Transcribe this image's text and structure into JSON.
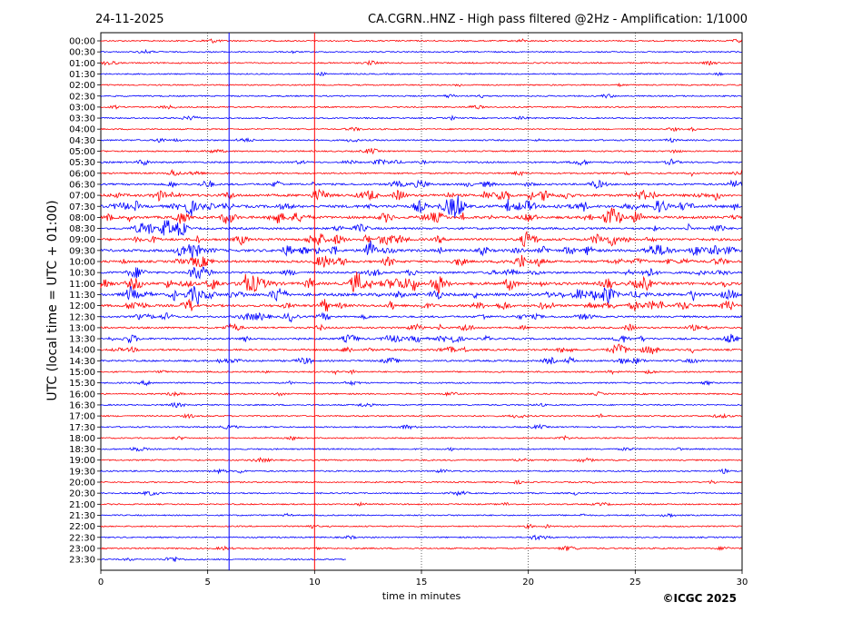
{
  "header": {
    "date": "24-11-2025",
    "title": "CA.CGRN..HNZ - High pass filtered @2Hz - Amplification: 1/1000"
  },
  "footer": {
    "copyright": "©ICGC 2025"
  },
  "colors": {
    "red": "#ff0000",
    "blue": "#0000ff",
    "grid": "#000000"
  },
  "chart_data": {
    "type": "line",
    "title": "CA.CGRN..HNZ - High pass filtered @2Hz - Amplification: 1/1000",
    "xlabel": "time in minutes",
    "ylabel": "UTC (local time = UTC + 01:00)",
    "xlim": [
      0,
      30
    ],
    "xticks": [
      0,
      5,
      10,
      15,
      20,
      25,
      30
    ],
    "grid": "vertical dotted at 5, 15, 20, 25 min",
    "markers": [
      {
        "minute": 6,
        "color": "#0000ff"
      },
      {
        "minute": 10,
        "color": "#ff0000"
      }
    ],
    "rows": [
      "00:00",
      "00:30",
      "01:00",
      "01:30",
      "02:00",
      "02:30",
      "03:00",
      "03:30",
      "04:00",
      "04:30",
      "05:00",
      "05:30",
      "06:00",
      "06:30",
      "07:00",
      "07:30",
      "08:00",
      "08:30",
      "09:00",
      "09:30",
      "10:00",
      "10:30",
      "11:00",
      "11:30",
      "12:00",
      "12:30",
      "13:00",
      "13:30",
      "14:00",
      "14:30",
      "15:00",
      "15:30",
      "16:00",
      "16:30",
      "17:00",
      "17:30",
      "18:00",
      "18:30",
      "19:00",
      "19:30",
      "20:00",
      "20:30",
      "21:00",
      "21:30",
      "22:00",
      "22:30",
      "23:00",
      "23:30"
    ],
    "row_colors": [
      "#ff0000",
      "#0000ff"
    ],
    "activity": [
      0.12,
      0.08,
      0.12,
      0.08,
      0.08,
      0.12,
      0.1,
      0.12,
      0.12,
      0.2,
      0.15,
      0.3,
      0.25,
      0.45,
      0.85,
      1.0,
      0.85,
      0.6,
      0.8,
      0.9,
      0.7,
      0.6,
      1.0,
      1.0,
      0.75,
      0.45,
      0.4,
      0.5,
      0.45,
      0.35,
      0.2,
      0.15,
      0.15,
      0.12,
      0.15,
      0.12,
      0.1,
      0.15,
      0.12,
      0.15,
      0.12,
      0.12,
      0.1,
      0.1,
      0.12,
      0.1,
      0.15,
      0.1
    ],
    "last_row_end_minute": 11.5
  }
}
